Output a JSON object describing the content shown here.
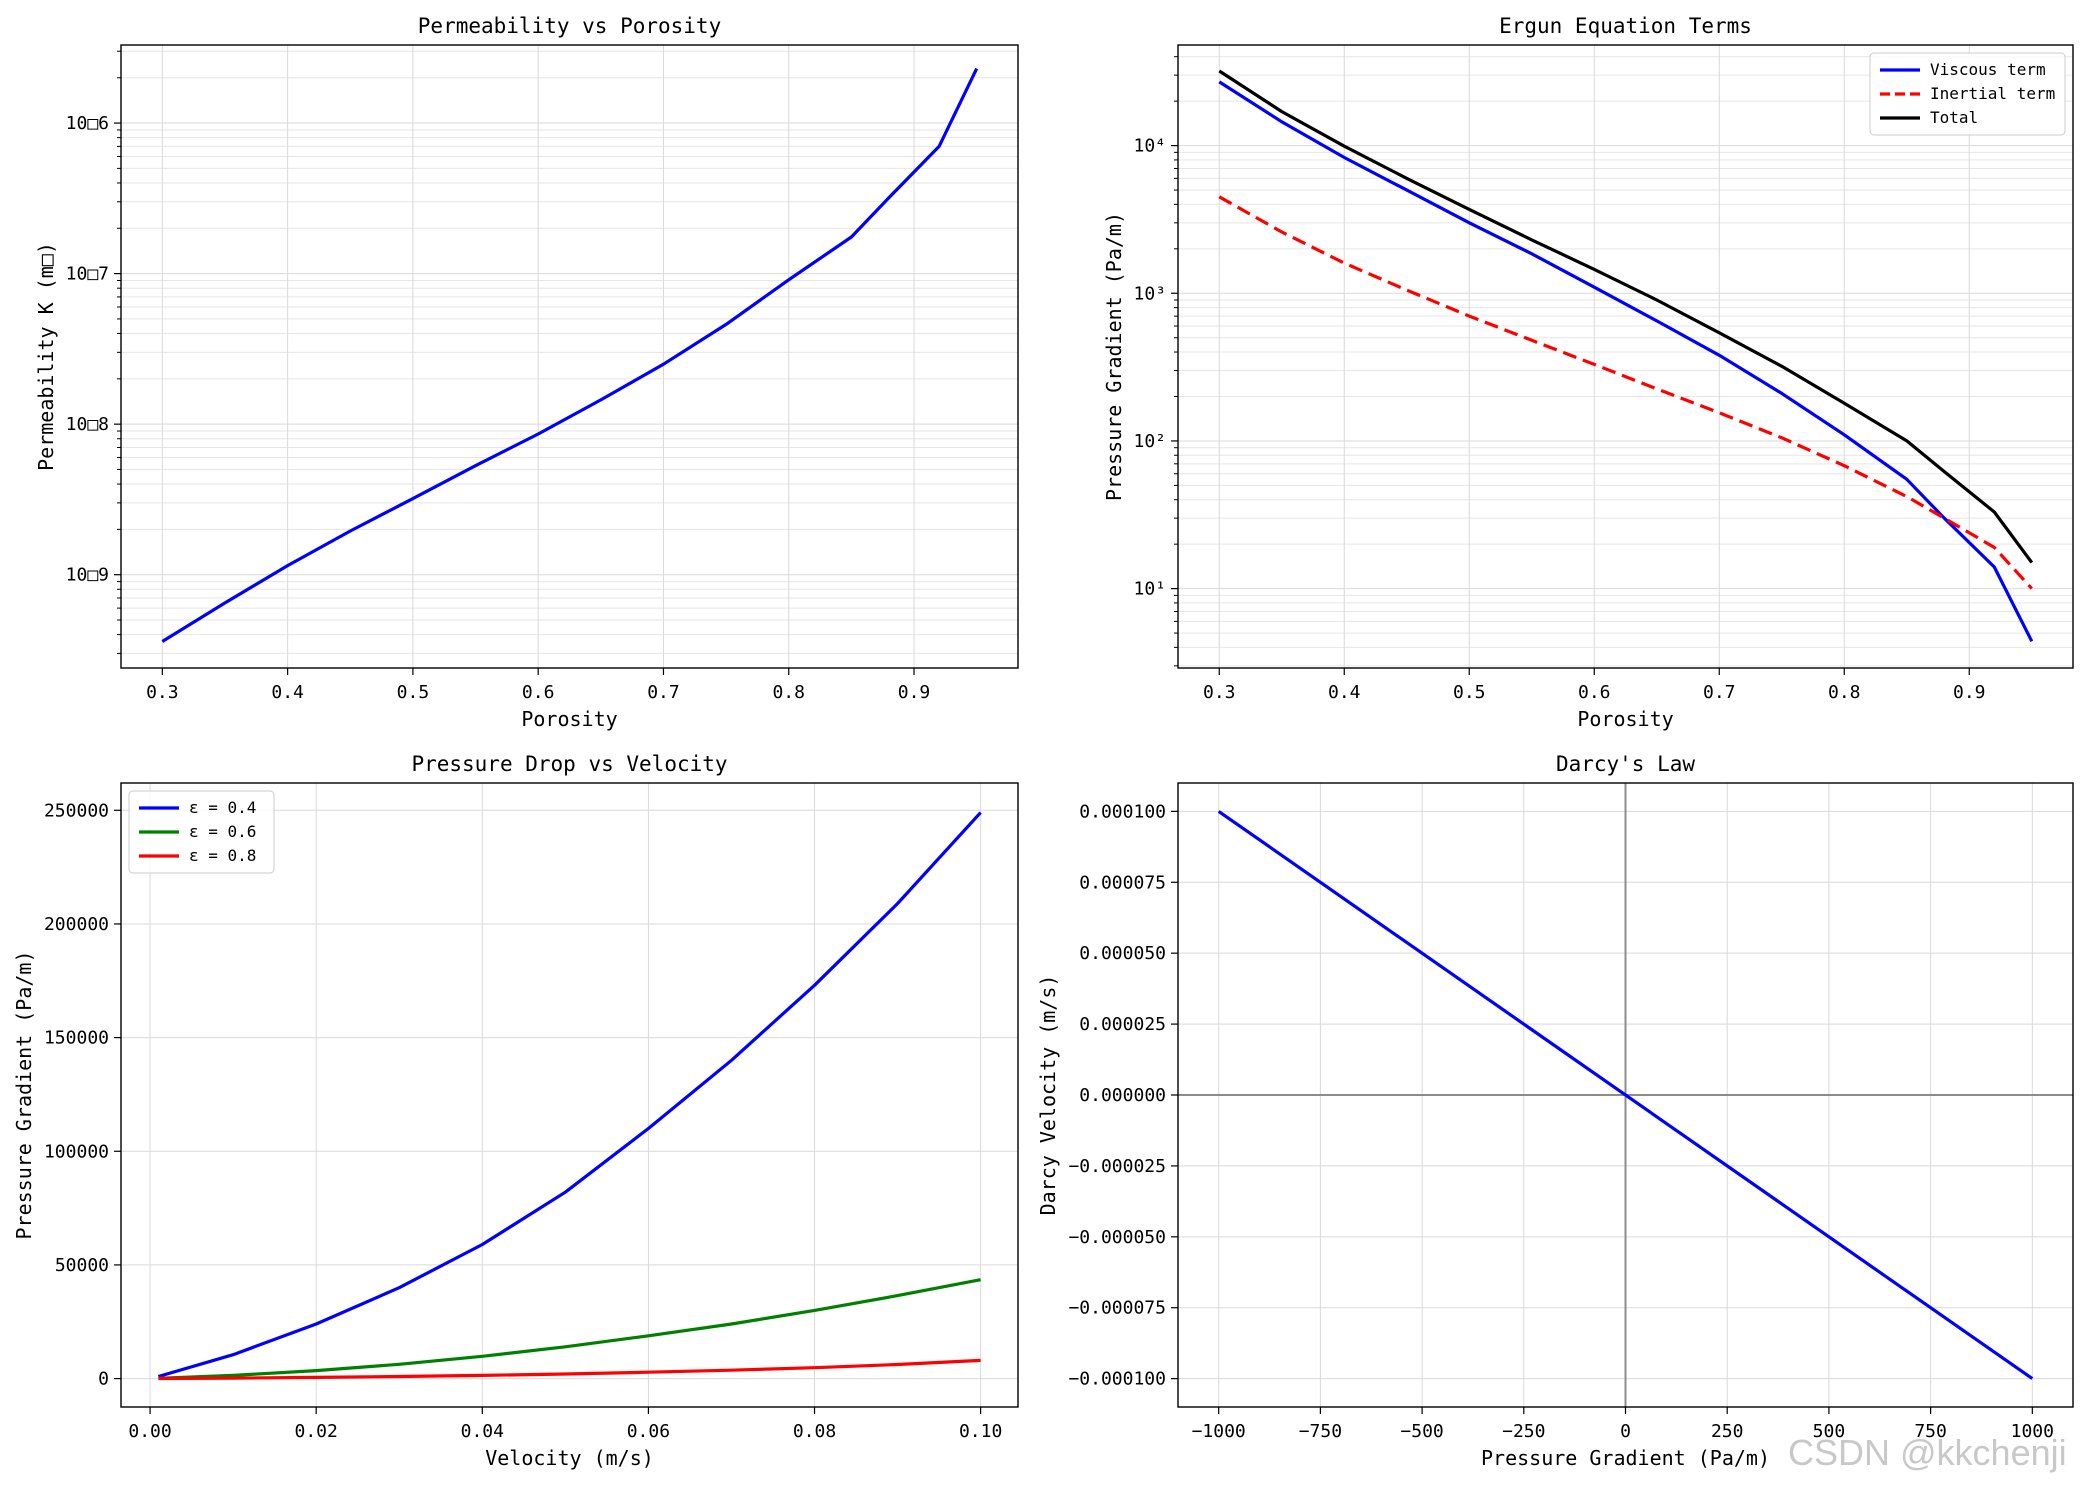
{
  "chart_data": [
    {
      "id": "perm",
      "type": "line",
      "title": "Permeability vs Porosity",
      "xlabel": "Porosity",
      "ylabel": "Permeability K (m□)",
      "xlim": [
        0.267,
        0.983
      ],
      "ylim": [
        2.4e-10,
        3.3e-06
      ],
      "yscale": "log",
      "xticks": [
        0.3,
        0.4,
        0.5,
        0.6,
        0.7,
        0.8,
        0.9
      ],
      "xtick_labels": [
        "0.3",
        "0.4",
        "0.5",
        "0.6",
        "0.7",
        "0.8",
        "0.9"
      ],
      "yticks": [
        1e-09,
        1e-08,
        1e-07,
        1e-06
      ],
      "ytick_labels": [
        "10□9",
        "10□8",
        "10□7",
        "10□6"
      ],
      "grid": true,
      "legend": null,
      "series": [
        {
          "name": "",
          "color": "#0000ff",
          "dash": "",
          "x": [
            0.3,
            0.35,
            0.4,
            0.45,
            0.5,
            0.55,
            0.6,
            0.65,
            0.7,
            0.75,
            0.8,
            0.85,
            0.88,
            0.92,
            0.95
          ],
          "y": [
            3.6e-10,
            6.5e-10,
            1.15e-09,
            1.95e-09,
            3.2e-09,
            5.3e-09,
            8.6e-09,
            1.45e-08,
            2.5e-08,
            4.6e-08,
            9.1e-08,
            1.75e-07,
            3.2e-07,
            7e-07,
            2.3e-06
          ]
        }
      ]
    },
    {
      "id": "ergun",
      "type": "line",
      "title": "Ergun Equation Terms",
      "xlabel": "Porosity",
      "ylabel": "Pressure Gradient (Pa/m)",
      "xlim": [
        0.267,
        0.983
      ],
      "ylim": [
        2.9,
        48000
      ],
      "yscale": "log",
      "xticks": [
        0.3,
        0.4,
        0.5,
        0.6,
        0.7,
        0.8,
        0.9
      ],
      "xtick_labels": [
        "0.3",
        "0.4",
        "0.5",
        "0.6",
        "0.7",
        "0.8",
        "0.9"
      ],
      "yticks": [
        10,
        100,
        1000,
        10000
      ],
      "ytick_labels": [
        "10¹",
        "10²",
        "10³",
        "10⁴"
      ],
      "grid": true,
      "legend": "top-right",
      "series": [
        {
          "name": "Viscous term",
          "color": "#0000ff",
          "dash": "",
          "x": [
            0.3,
            0.35,
            0.4,
            0.45,
            0.5,
            0.55,
            0.6,
            0.65,
            0.7,
            0.75,
            0.8,
            0.85,
            0.88,
            0.92,
            0.95
          ],
          "y": [
            27000,
            14500,
            8300,
            5000,
            3000,
            1850,
            1100,
            650,
            380,
            210,
            110,
            55,
            30,
            14,
            4.4
          ]
        },
        {
          "name": "Inertial term",
          "color": "#ff0000",
          "dash": "14,7",
          "x": [
            0.3,
            0.35,
            0.4,
            0.45,
            0.5,
            0.55,
            0.6,
            0.65,
            0.7,
            0.75,
            0.8,
            0.85,
            0.88,
            0.92,
            0.95
          ],
          "y": [
            4500,
            2600,
            1600,
            1050,
            700,
            480,
            330,
            225,
            155,
            105,
            68,
            42,
            30,
            19,
            10
          ]
        },
        {
          "name": "Total",
          "color": "#000000",
          "dash": "",
          "x": [
            0.3,
            0.35,
            0.4,
            0.45,
            0.5,
            0.55,
            0.6,
            0.65,
            0.7,
            0.75,
            0.8,
            0.85,
            0.88,
            0.92,
            0.95
          ],
          "y": [
            32000,
            17000,
            9900,
            6000,
            3700,
            2300,
            1450,
            900,
            540,
            320,
            180,
            100,
            62,
            33,
            15
          ]
        }
      ]
    },
    {
      "id": "dp",
      "type": "line",
      "title": "Pressure Drop vs Velocity",
      "xlabel": "Velocity (m/s)",
      "ylabel": "Pressure Gradient (Pa/m)",
      "xlim": [
        -0.0035,
        0.1045
      ],
      "ylim": [
        -12500,
        262000
      ],
      "yscale": "linear",
      "xticks": [
        0,
        0.02,
        0.04,
        0.06,
        0.08,
        0.1
      ],
      "xtick_labels": [
        "0.00",
        "0.02",
        "0.04",
        "0.06",
        "0.08",
        "0.10"
      ],
      "yticks": [
        0,
        50000,
        100000,
        150000,
        200000,
        250000
      ],
      "ytick_labels": [
        "0",
        "50000",
        "100000",
        "150000",
        "200000",
        "250000"
      ],
      "grid": true,
      "legend": "top-left",
      "series": [
        {
          "name": "ε = 0.4",
          "color": "#0000ff",
          "dash": "",
          "x": [
            0.001,
            0.01,
            0.02,
            0.03,
            0.04,
            0.05,
            0.06,
            0.07,
            0.08,
            0.09,
            0.1
          ],
          "y": [
            900,
            10500,
            24000,
            40000,
            59000,
            82000,
            110000,
            140000,
            173000,
            209000,
            249000
          ]
        },
        {
          "name": "ε = 0.6",
          "color": "#008000",
          "dash": "",
          "x": [
            0.001,
            0.01,
            0.02,
            0.03,
            0.04,
            0.05,
            0.06,
            0.07,
            0.08,
            0.09,
            0.1
          ],
          "y": [
            100,
            1400,
            3500,
            6300,
            9800,
            14000,
            18800,
            24000,
            30000,
            36500,
            43500
          ]
        },
        {
          "name": "ε = 0.8",
          "color": "#ff0000",
          "dash": "",
          "x": [
            0.001,
            0.01,
            0.02,
            0.03,
            0.04,
            0.05,
            0.06,
            0.07,
            0.08,
            0.09,
            0.1
          ],
          "y": [
            20,
            220,
            520,
            900,
            1400,
            2000,
            2800,
            3700,
            4800,
            6200,
            8000
          ]
        }
      ]
    },
    {
      "id": "darcy",
      "type": "line",
      "title": "Darcy's Law",
      "xlabel": "Pressure Gradient (Pa/m)",
      "ylabel": "Darcy Velocity (m/s)",
      "xlim": [
        -1100,
        1100
      ],
      "ylim": [
        -0.00011,
        0.00011
      ],
      "yscale": "linear",
      "xticks": [
        -1000,
        -750,
        -500,
        -250,
        0,
        250,
        500,
        750,
        1000
      ],
      "xtick_labels": [
        "−1000",
        "−750",
        "−500",
        "−250",
        "0",
        "250",
        "500",
        "750",
        "1000"
      ],
      "yticks": [
        -0.0001,
        -7.5e-05,
        -5e-05,
        -2.5e-05,
        0,
        2.5e-05,
        5e-05,
        7.5e-05,
        0.0001
      ],
      "ytick_labels": [
        "−0.000100",
        "−0.000075",
        "−0.000050",
        "−0.000025",
        "0.000000",
        "0.000025",
        "0.000050",
        "0.000075",
        "0.000100"
      ],
      "grid": true,
      "legend": null,
      "zero_lines": true,
      "series": [
        {
          "name": "",
          "color": "#0000ff",
          "dash": "",
          "x": [
            -1000,
            1000
          ],
          "y": [
            0.0001,
            -0.0001
          ]
        }
      ]
    }
  ],
  "watermark": "CSDN @kkchenji"
}
